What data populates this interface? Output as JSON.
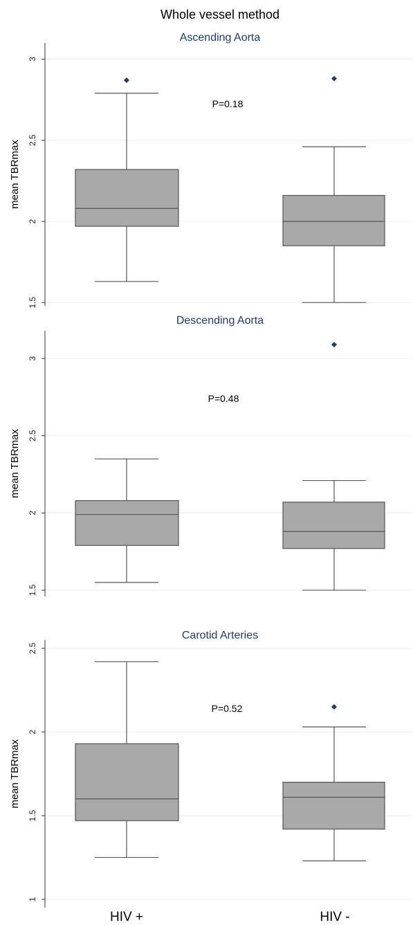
{
  "main_title": "Whole vessel method",
  "x_categories": [
    "HIV +",
    "HIV -"
  ],
  "colors": {
    "box": "#a9a9a9",
    "outlier": "#1a3d6e",
    "grid": "#e8eef4",
    "title": "#1f3a6e"
  },
  "chart_data": [
    {
      "type": "box",
      "title": "Ascending Aorta",
      "ylabel": "mean TBRmax",
      "ylim": [
        1.48,
        3.1
      ],
      "yticks": [
        "3",
        "2.5",
        "2",
        "1.5"
      ],
      "annotation": "P=0.18",
      "grid": true,
      "series": [
        {
          "category": "HIV +",
          "whisker_low": 1.63,
          "q1": 1.97,
          "median": 2.08,
          "q3": 2.32,
          "whisker_high": 2.79,
          "outliers": [
            2.87
          ]
        },
        {
          "category": "HIV -",
          "whisker_low": 1.5,
          "q1": 1.85,
          "median": 2.0,
          "q3": 2.16,
          "whisker_high": 2.46,
          "outliers": [
            2.88
          ]
        }
      ]
    },
    {
      "type": "box",
      "title": "Descending Aorta",
      "ylabel": "mean TBRmax",
      "ylim": [
        1.46,
        3.18
      ],
      "yticks": [
        "3",
        "2.5",
        "2",
        "1.5"
      ],
      "annotation": "P=0.48",
      "grid": true,
      "series": [
        {
          "category": "HIV +",
          "whisker_low": 1.55,
          "q1": 1.79,
          "median": 1.99,
          "q3": 2.08,
          "whisker_high": 2.35,
          "outliers": []
        },
        {
          "category": "HIV -",
          "whisker_low": 1.5,
          "q1": 1.77,
          "median": 1.88,
          "q3": 2.07,
          "whisker_high": 2.21,
          "outliers": [
            3.09
          ]
        }
      ]
    },
    {
      "type": "box",
      "title": "Carotid Arteries",
      "ylabel": "mean TBRmax",
      "ylim": [
        0.95,
        2.55
      ],
      "yticks": [
        "2.5",
        "2",
        "1.5",
        "1"
      ],
      "annotation": "P=0.52",
      "grid": true,
      "series": [
        {
          "category": "HIV +",
          "whisker_low": 1.25,
          "q1": 1.47,
          "median": 1.6,
          "q3": 1.93,
          "whisker_high": 2.42,
          "outliers": []
        },
        {
          "category": "HIV -",
          "whisker_low": 1.23,
          "q1": 1.42,
          "median": 1.61,
          "q3": 1.7,
          "whisker_high": 2.03,
          "outliers": [
            2.15
          ]
        }
      ]
    }
  ]
}
